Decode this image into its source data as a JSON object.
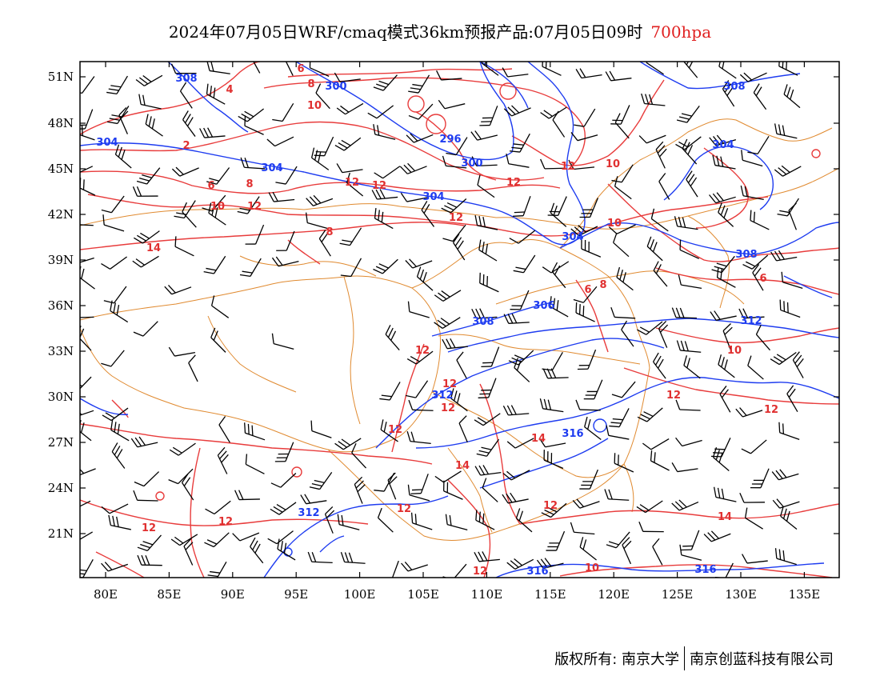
{
  "title": {
    "main": "2024年07月05日WRF/cmaq模式36km预报产品:07月05日09时",
    "level": "700hpa"
  },
  "axes": {
    "y_ticks": [
      "51N",
      "48N",
      "45N",
      "42N",
      "39N",
      "36N",
      "33N",
      "30N",
      "27N",
      "24N",
      "21N"
    ],
    "x_ticks": [
      "80E",
      "85E",
      "90E",
      "95E",
      "100E",
      "105E",
      "110E",
      "115E",
      "120E",
      "125E",
      "130E",
      "135E"
    ]
  },
  "colors": {
    "temperature_contour": "#e83c3c",
    "height_contour": "#1e3cf0",
    "boundary": "#e08a30",
    "wind_barb": "#000000"
  },
  "temperature_labels": [
    "6",
    "8",
    "4",
    "10",
    "2",
    "6",
    "8",
    "10",
    "12",
    "14",
    "12",
    "12",
    "12",
    "10",
    "8",
    "6",
    "8",
    "10",
    "6",
    "10",
    "12",
    "12",
    "12",
    "14",
    "14",
    "14",
    "12",
    "12",
    "12",
    "12",
    "12",
    "12",
    "12",
    "12",
    "12",
    "10",
    "12"
  ],
  "height_labels": [
    "308",
    "300",
    "304",
    "304",
    "296",
    "300",
    "304",
    "304",
    "304",
    "308",
    "306",
    "308",
    "308",
    "312",
    "316",
    "312",
    "316",
    "316",
    "312"
  ],
  "footer": {
    "copyright": "版权所有: 南京大学",
    "company": "南京创蓝科技有限公司"
  }
}
